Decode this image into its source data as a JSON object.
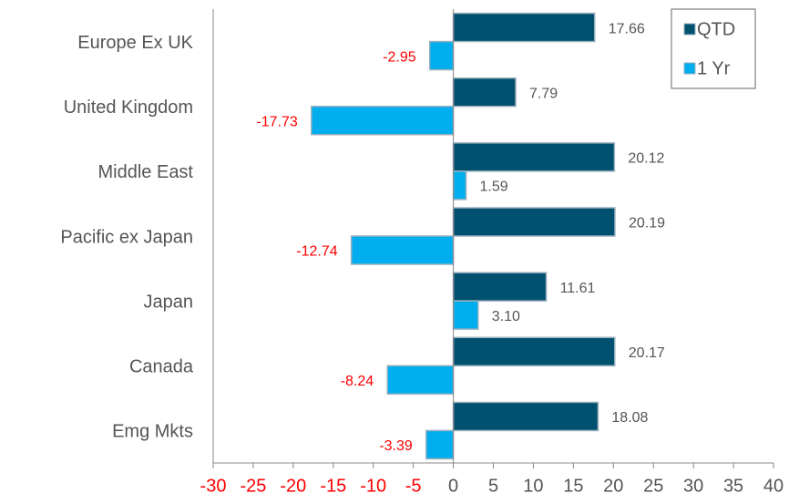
{
  "chart_data": {
    "type": "hbar",
    "categories": [
      "Europe Ex UK",
      "United Kingdom",
      "Middle East",
      "Pacific ex Japan",
      "Japan",
      "Canada",
      "Emg Mkts"
    ],
    "series": [
      {
        "name": "QTD",
        "color": "#00506f",
        "values": [
          17.66,
          7.79,
          20.12,
          20.19,
          11.61,
          20.17,
          18.08
        ],
        "value_labels": [
          "17.66",
          "7.79",
          "20.12",
          "20.19",
          "11.61",
          "20.17",
          "18.08"
        ]
      },
      {
        "name": "1 Yr",
        "color": "#00aeef",
        "values": [
          -2.95,
          -17.73,
          1.59,
          -12.74,
          3.1,
          -8.24,
          -3.39
        ],
        "value_labels": [
          "-2.95",
          "-17.73",
          "1.59",
          "-12.74",
          "3.10",
          "-8.24",
          "-3.39"
        ]
      }
    ],
    "xlim": [
      -30,
      40
    ],
    "xticks": [
      -30,
      -25,
      -20,
      -15,
      -10,
      -5,
      0,
      5,
      10,
      15,
      20,
      25,
      30,
      35,
      40
    ],
    "negative_color": "#ff0000",
    "legend": "upper right"
  }
}
